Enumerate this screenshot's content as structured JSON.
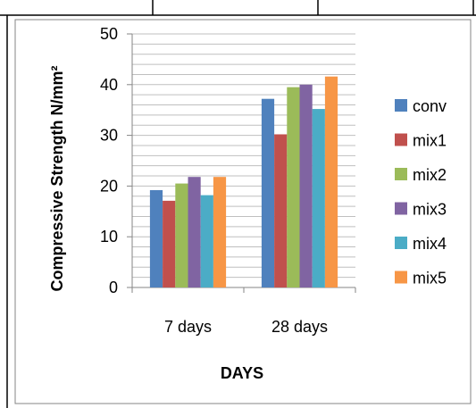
{
  "chart_data": {
    "type": "bar",
    "title": "",
    "xlabel": "DAYS",
    "ylabel": "Compressive Strength N/mm²",
    "categories": [
      "7 days",
      "28 days"
    ],
    "ylim": [
      0,
      50
    ],
    "yticks": [
      0,
      10,
      20,
      30,
      40,
      50
    ],
    "grid": true,
    "legend_position": "right",
    "series": [
      {
        "name": "conv",
        "color": "#4F81BD",
        "values": [
          19.2,
          37.2
        ]
      },
      {
        "name": "mix1",
        "color": "#C0504D",
        "values": [
          17.1,
          30.2
        ]
      },
      {
        "name": "mix2",
        "color": "#9BBB59",
        "values": [
          20.5,
          39.5
        ]
      },
      {
        "name": "mix3",
        "color": "#8064A2",
        "values": [
          21.8,
          40.0
        ]
      },
      {
        "name": "mix4",
        "color": "#4BACC6",
        "values": [
          18.2,
          35.2
        ]
      },
      {
        "name": "mix5",
        "color": "#F79646",
        "values": [
          21.8,
          41.6
        ]
      }
    ]
  }
}
